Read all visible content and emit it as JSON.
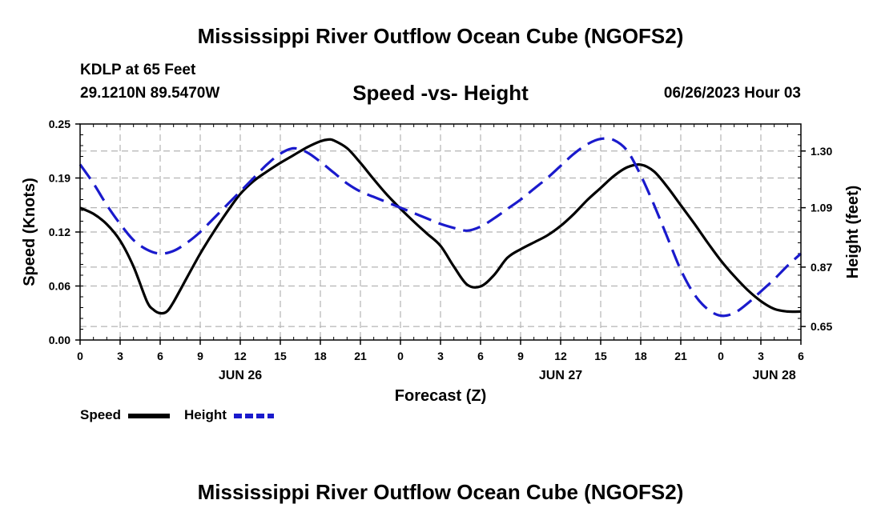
{
  "header": {
    "title": "Mississippi River Outflow Ocean Cube (NGOFS2)",
    "station": "KDLP at 65 Feet",
    "coords": "29.1210N  89.5470W",
    "subtitle": "Speed -vs- Height",
    "date": "06/26/2023 Hour 03"
  },
  "footer": {
    "title": "Mississippi River Outflow Ocean Cube (NGOFS2)"
  },
  "colors": {
    "speed": "#000000",
    "height": "#1a1acc",
    "grid": "#b4b4b4"
  },
  "chart_data": {
    "type": "line",
    "xlabel": "Forecast (Z)",
    "ylabel": "Speed (Knots)",
    "y2label": "Height (feet)",
    "xlim": [
      0,
      54
    ],
    "ylim": [
      0,
      0.25
    ],
    "y2lim": [
      0.6,
      1.4
    ],
    "x_tick_values": [
      0,
      3,
      6,
      9,
      12,
      15,
      18,
      21,
      24,
      27,
      30,
      33,
      36,
      39,
      42,
      45,
      48,
      51,
      54
    ],
    "x_tick_labels": [
      "0",
      "3",
      "6",
      "9",
      "12",
      "15",
      "18",
      "21",
      "0",
      "3",
      "6",
      "9",
      "12",
      "15",
      "18",
      "21",
      "0",
      "3",
      "6"
    ],
    "y_tick_values": [
      0,
      0.0625,
      0.125,
      0.1875,
      0.25
    ],
    "y_tick_labels": [
      "0.00",
      "0.06",
      "0.12",
      "0.19",
      "0.25"
    ],
    "y2_tick_values": [
      0.65,
      0.87,
      1.09,
      1.3
    ],
    "y2_tick_labels": [
      "0.65",
      "0.87",
      "1.09",
      "1.30"
    ],
    "date_labels": [
      {
        "x": 12,
        "text": "JUN 26"
      },
      {
        "x": 36,
        "text": "JUN 27"
      },
      {
        "x": 52,
        "text": "JUN 28"
      }
    ],
    "grid": true,
    "legend": {
      "position": "bottom-left",
      "entries": [
        "Speed",
        "Height"
      ]
    },
    "series": [
      {
        "name": "Speed",
        "axis": "left",
        "style": "solid",
        "x": [
          0,
          1,
          2,
          3,
          4,
          5,
          5.5,
          6,
          6.5,
          7,
          8,
          9,
          10,
          11,
          12,
          13,
          14,
          15,
          16,
          17,
          18,
          18.6,
          19,
          20,
          21,
          22,
          23,
          24,
          25,
          26,
          27,
          28,
          29,
          30,
          31,
          32,
          33,
          34,
          35,
          36,
          37,
          38,
          39,
          40,
          41,
          42,
          43,
          44,
          45,
          46,
          47,
          48,
          49,
          50,
          51,
          52,
          53,
          54
        ],
        "values": [
          0.153,
          0.146,
          0.134,
          0.115,
          0.085,
          0.045,
          0.035,
          0.031,
          0.033,
          0.044,
          0.072,
          0.1,
          0.125,
          0.148,
          0.169,
          0.184,
          0.195,
          0.205,
          0.214,
          0.223,
          0.23,
          0.232,
          0.231,
          0.222,
          0.205,
          0.186,
          0.168,
          0.152,
          0.137,
          0.123,
          0.109,
          0.085,
          0.064,
          0.062,
          0.075,
          0.095,
          0.105,
          0.113,
          0.121,
          0.132,
          0.146,
          0.162,
          0.176,
          0.19,
          0.2,
          0.203,
          0.195,
          0.177,
          0.156,
          0.135,
          0.113,
          0.092,
          0.074,
          0.058,
          0.045,
          0.036,
          0.033,
          0.033
        ]
      },
      {
        "name": "Height",
        "axis": "right",
        "style": "dashed",
        "x": [
          0,
          1,
          2,
          3,
          4,
          5,
          6,
          7,
          8,
          9,
          10,
          11,
          12,
          13,
          14,
          15,
          16,
          17,
          18,
          19,
          20,
          21,
          22,
          23,
          24,
          25,
          26,
          27,
          28,
          29,
          30,
          31,
          32,
          33,
          34,
          35,
          36,
          37,
          38,
          39,
          40,
          41,
          42,
          43,
          44,
          45,
          46,
          47,
          48,
          49,
          50,
          51,
          52,
          53,
          54
        ],
        "values": [
          1.25,
          1.18,
          1.1,
          1.03,
          0.97,
          0.935,
          0.92,
          0.93,
          0.96,
          1.0,
          1.05,
          1.1,
          1.15,
          1.2,
          1.25,
          1.29,
          1.31,
          1.295,
          1.26,
          1.22,
          1.18,
          1.15,
          1.13,
          1.11,
          1.09,
          1.07,
          1.05,
          1.03,
          1.015,
          1.005,
          1.02,
          1.05,
          1.085,
          1.12,
          1.16,
          1.2,
          1.245,
          1.29,
          1.325,
          1.345,
          1.34,
          1.3,
          1.21,
          1.1,
          0.98,
          0.86,
          0.77,
          0.715,
          0.69,
          0.7,
          0.735,
          0.78,
          0.825,
          0.875,
          0.92
        ]
      }
    ]
  }
}
